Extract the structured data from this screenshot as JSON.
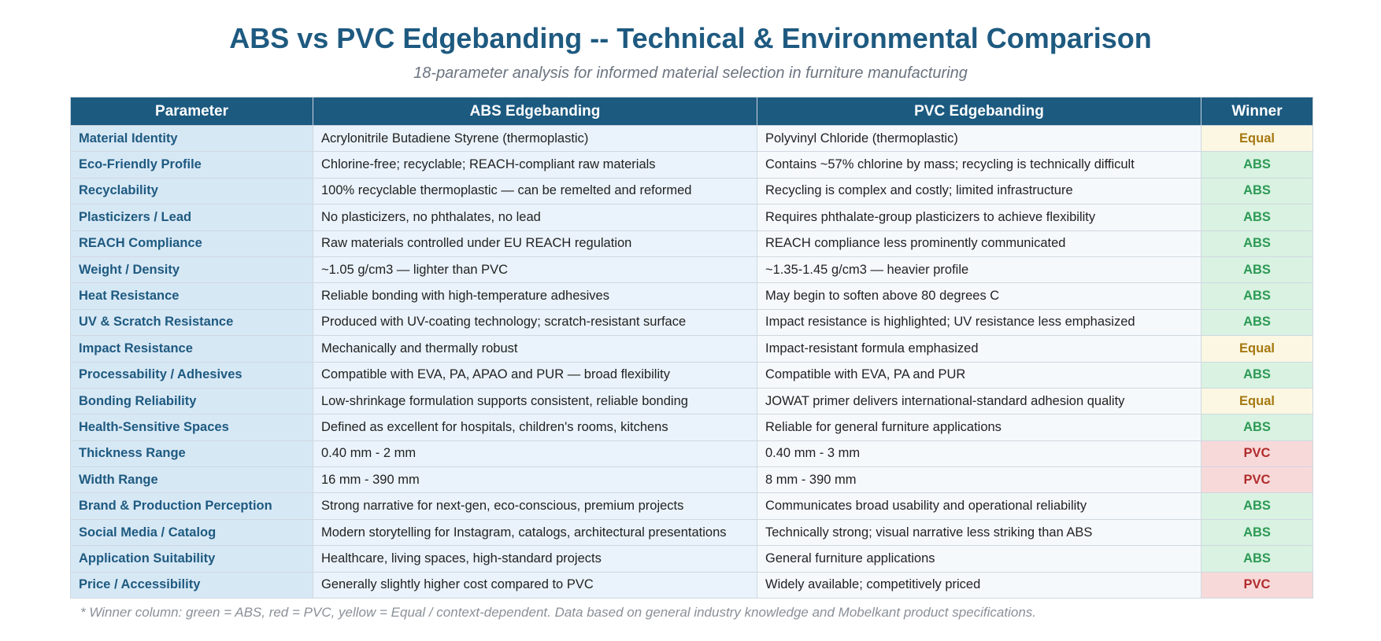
{
  "title": "ABS vs PVC Edgebanding -- Technical & Environmental Comparison",
  "subtitle": "18-parameter analysis for informed material selection in furniture manufacturing",
  "table": {
    "headers": [
      "Parameter",
      "ABS Edgebanding",
      "PVC Edgebanding",
      "Winner"
    ],
    "rows": [
      {
        "parameter": "Material Identity",
        "abs": "Acrylonitrile Butadiene Styrene (thermoplastic)",
        "pvc": "Polyvinyl Chloride (thermoplastic)",
        "winner": "Equal"
      },
      {
        "parameter": "Eco-Friendly Profile",
        "abs": "Chlorine-free; recyclable; REACH-compliant raw materials",
        "pvc": "Contains ~57% chlorine by mass; recycling is technically difficult",
        "winner": "ABS"
      },
      {
        "parameter": "Recyclability",
        "abs": "100% recyclable thermoplastic — can be remelted and reformed",
        "pvc": "Recycling is complex and costly; limited infrastructure",
        "winner": "ABS"
      },
      {
        "parameter": "Plasticizers / Lead",
        "abs": "No plasticizers, no phthalates, no lead",
        "pvc": "Requires phthalate-group plasticizers to achieve flexibility",
        "winner": "ABS"
      },
      {
        "parameter": "REACH Compliance",
        "abs": "Raw materials controlled under EU REACH regulation",
        "pvc": "REACH compliance less prominently communicated",
        "winner": "ABS"
      },
      {
        "parameter": "Weight / Density",
        "abs": "~1.05 g/cm3 — lighter than PVC",
        "pvc": "~1.35-1.45 g/cm3 — heavier profile",
        "winner": "ABS"
      },
      {
        "parameter": "Heat Resistance",
        "abs": "Reliable bonding with high-temperature adhesives",
        "pvc": "May begin to soften above 80 degrees C",
        "winner": "ABS"
      },
      {
        "parameter": "UV & Scratch Resistance",
        "abs": "Produced with UV-coating technology; scratch-resistant surface",
        "pvc": "Impact resistance is highlighted; UV resistance less emphasized",
        "winner": "ABS"
      },
      {
        "parameter": "Impact Resistance",
        "abs": "Mechanically and thermally robust",
        "pvc": "Impact-resistant formula emphasized",
        "winner": "Equal"
      },
      {
        "parameter": "Processability / Adhesives",
        "abs": "Compatible with EVA, PA, APAO and PUR — broad flexibility",
        "pvc": "Compatible with EVA, PA and PUR",
        "winner": "ABS"
      },
      {
        "parameter": "Bonding Reliability",
        "abs": "Low-shrinkage formulation supports consistent, reliable bonding",
        "pvc": "JOWAT primer delivers international-standard adhesion quality",
        "winner": "Equal"
      },
      {
        "parameter": "Health-Sensitive Spaces",
        "abs": "Defined as excellent for hospitals, children's rooms, kitchens",
        "pvc": "Reliable for general furniture applications",
        "winner": "ABS"
      },
      {
        "parameter": "Thickness Range",
        "abs": "0.40 mm - 2 mm",
        "pvc": "0.40 mm - 3 mm",
        "winner": "PVC"
      },
      {
        "parameter": "Width Range",
        "abs": "16 mm - 390 mm",
        "pvc": "8 mm - 390 mm",
        "winner": "PVC"
      },
      {
        "parameter": "Brand & Production Perception",
        "abs": "Strong narrative for next-gen, eco-conscious, premium projects",
        "pvc": "Communicates broad usability and operational reliability",
        "winner": "ABS"
      },
      {
        "parameter": "Social Media / Catalog",
        "abs": "Modern storytelling for Instagram, catalogs, architectural presentations",
        "pvc": "Technically strong; visual narrative less striking than ABS",
        "winner": "ABS"
      },
      {
        "parameter": "Application Suitability",
        "abs": "Healthcare, living spaces, high-standard projects",
        "pvc": "General furniture applications",
        "winner": "ABS"
      },
      {
        "parameter": "Price / Accessibility",
        "abs": "Generally slightly higher cost compared to PVC",
        "pvc": "Widely available; competitively priced",
        "winner": "PVC"
      }
    ]
  },
  "winner_colors": {
    "ABS": "#2c9a54",
    "PVC": "#b02c2c",
    "Equal": "#a67810"
  },
  "footnote": "* Winner column: green = ABS, red = PVC, yellow = Equal / context-dependent. Data based on general industry knowledge and Mobelkant product specifications."
}
